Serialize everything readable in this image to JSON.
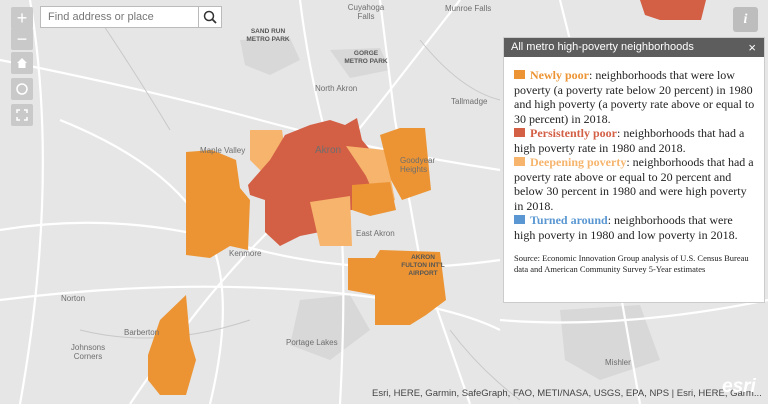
{
  "search": {
    "placeholder": "Find address or place"
  },
  "map_labels": {
    "cuyahoga_falls": [
      "Cuyahoga",
      "Falls"
    ],
    "munroe_falls": "Munroe Falls",
    "sand_run": [
      "SAND RUN",
      "METRO PARK"
    ],
    "gorge": [
      "GORGE",
      "METRO PARK"
    ],
    "north_akron": "North Akron",
    "tallmadge": "Tallmadge",
    "maple_valley": "Maple Valley",
    "akron": "Akron",
    "goodyear_heights": [
      "Goodyear",
      "Heights"
    ],
    "east_akron": "East Akron",
    "airport": [
      "AKRON",
      "FULTON INT'L",
      "AIRPORT"
    ],
    "kenmore": "Kenmore",
    "norton": "Norton",
    "barberton": "Barberton",
    "johnsons_corners": [
      "Johnsons",
      "Corners"
    ],
    "portage_lakes": "Portage Lakes",
    "mishler": "Mishler"
  },
  "attribution": "Esri, HERE, Garmin, SafeGraph, FAO, METI/NASA, USGS, EPA, NPS | Esri, HERE, Garm...",
  "logo": "esri",
  "panel": {
    "title": "All metro high-poverty neighborhoods",
    "close": "×",
    "legend": [
      {
        "label": "Newly poor",
        "color": "#ec9433",
        "text": ": neighborhoods that were low poverty (a poverty rate below 20 percent) in 1980 and high poverty (a poverty rate above or equal to 30 percent) in 2018."
      },
      {
        "label": "Persistently poor",
        "color": "#d35f45",
        "text": ": neighborhoods that had a high poverty rate in 1980 and 2018."
      },
      {
        "label": "Deepening poverty",
        "color": "#f6b46c",
        "text": ": neighborhoods that had a poverty rate above or equal to 20 percent and below 30 percent in 1980 and were high poverty in 2018."
      },
      {
        "label": "Turned around",
        "color": "#5a97d2",
        "text": ": neighborhoods that were high poverty in 1980 and low poverty in 2018."
      }
    ],
    "source": "Source: Economic Innovation Group analysis of U.S. Census Bureau data and American Community Survey 5-Year estimates"
  }
}
